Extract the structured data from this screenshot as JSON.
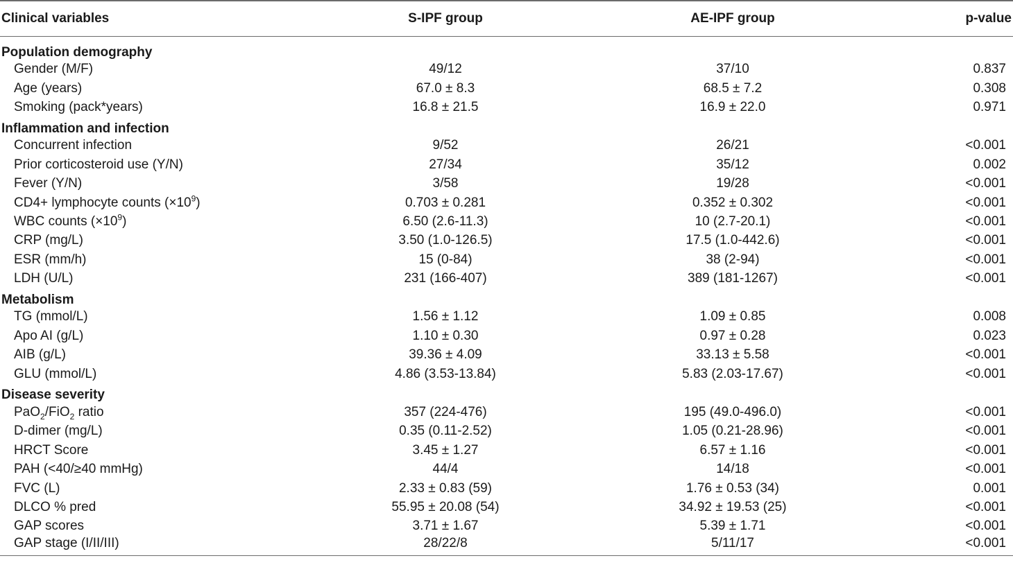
{
  "header": {
    "col1": "Clinical variables",
    "col2": "S-IPF group",
    "col3": "AE-IPF group",
    "col4": "p-value"
  },
  "sections": [
    {
      "title": "Population demography",
      "rows": [
        {
          "label": "Gender (M/F)",
          "s": "49/12",
          "ae": "37/10",
          "p": "0.837"
        },
        {
          "label": "Age (years)",
          "s": "67.0 ± 8.3",
          "ae": "68.5 ± 7.2",
          "p": "0.308"
        },
        {
          "label": "Smoking (pack*years)",
          "s": "16.8 ± 21.5",
          "ae": "16.9 ± 22.0",
          "p": "0.971"
        }
      ]
    },
    {
      "title": "Inflammation and infection",
      "rows": [
        {
          "label": "Concurrent infection",
          "s": "9/52",
          "ae": "26/21",
          "p": "<0.001"
        },
        {
          "label": "Prior corticosteroid use (Y/N)",
          "s": "27/34",
          "ae": "35/12",
          "p": "0.002"
        },
        {
          "label": "Fever (Y/N)",
          "s": "3/58",
          "ae": "19/28",
          "p": "<0.001"
        },
        {
          "label": "CD4+ lymphocyte counts (×10",
          "label_sup": "9",
          "label_after": ")",
          "s": "0.703 ± 0.281",
          "ae": "0.352 ± 0.302",
          "p": "<0.001"
        },
        {
          "label": "WBC counts (×10",
          "label_sup": "9",
          "label_after": ")",
          "s": "6.50 (2.6-11.3)",
          "ae": "10 (2.7-20.1)",
          "p": "<0.001"
        },
        {
          "label": "CRP (mg/L)",
          "s": "3.50 (1.0-126.5)",
          "ae": "17.5 (1.0-442.6)",
          "p": "<0.001"
        },
        {
          "label": "ESR (mm/h)",
          "s": "15 (0-84)",
          "ae": "38 (2-94)",
          "p": "<0.001"
        },
        {
          "label": "LDH (U/L)",
          "s": "231 (166-407)",
          "ae": "389 (181-1267)",
          "p": "<0.001"
        }
      ]
    },
    {
      "title": "Metabolism",
      "rows": [
        {
          "label": "TG (mmol/L)",
          "s": "1.56 ± 1.12",
          "ae": "1.09 ± 0.85",
          "p": "0.008"
        },
        {
          "label": "Apo AI (g/L)",
          "s": "1.10 ± 0.30",
          "ae": "0.97 ± 0.28",
          "p": "0.023"
        },
        {
          "label": "AIB (g/L)",
          "s": "39.36 ± 4.09",
          "ae": "33.13 ± 5.58",
          "p": "<0.001"
        },
        {
          "label": "GLU (mmol/L)",
          "s": "4.86 (3.53-13.84)",
          "ae": "5.83 (2.03-17.67)",
          "p": "<0.001"
        }
      ]
    },
    {
      "title": "Disease severity",
      "rows": [
        {
          "label": "PaO",
          "label_sub": "2",
          "label_mid": "/FiO",
          "label_sub2": "2",
          "label_after": " ratio",
          "s": "357 (224-476)",
          "ae": "195 (49.0-496.0)",
          "p": "<0.001"
        },
        {
          "label": "D-dimer (mg/L)",
          "s": "0.35 (0.11-2.52)",
          "ae": "1.05 (0.21-28.96)",
          "p": "<0.001"
        },
        {
          "label": "HRCT Score",
          "s": "3.45 ± 1.27",
          "ae": "6.57 ± 1.16",
          "p": "<0.001"
        },
        {
          "label": "PAH (<40/≥40 mmHg)",
          "s": "44/4",
          "ae": "14/18",
          "p": "<0.001"
        },
        {
          "label": "FVC (L)",
          "s": "2.33 ± 0.83 (59)",
          "ae": "1.76 ± 0.53 (34)",
          "p": "0.001"
        },
        {
          "label": "DLCO % pred",
          "s": "55.95 ± 20.08 (54)",
          "ae": "34.92 ± 19.53 (25)",
          "p": "<0.001"
        },
        {
          "label": "GAP scores",
          "s": "3.71 ± 1.67",
          "ae": "5.39 ± 1.71",
          "p": "<0.001"
        },
        {
          "label": "GAP stage (I/II/III)",
          "s": "28/22/8",
          "ae": "5/11/17",
          "p": "<0.001"
        }
      ]
    }
  ]
}
